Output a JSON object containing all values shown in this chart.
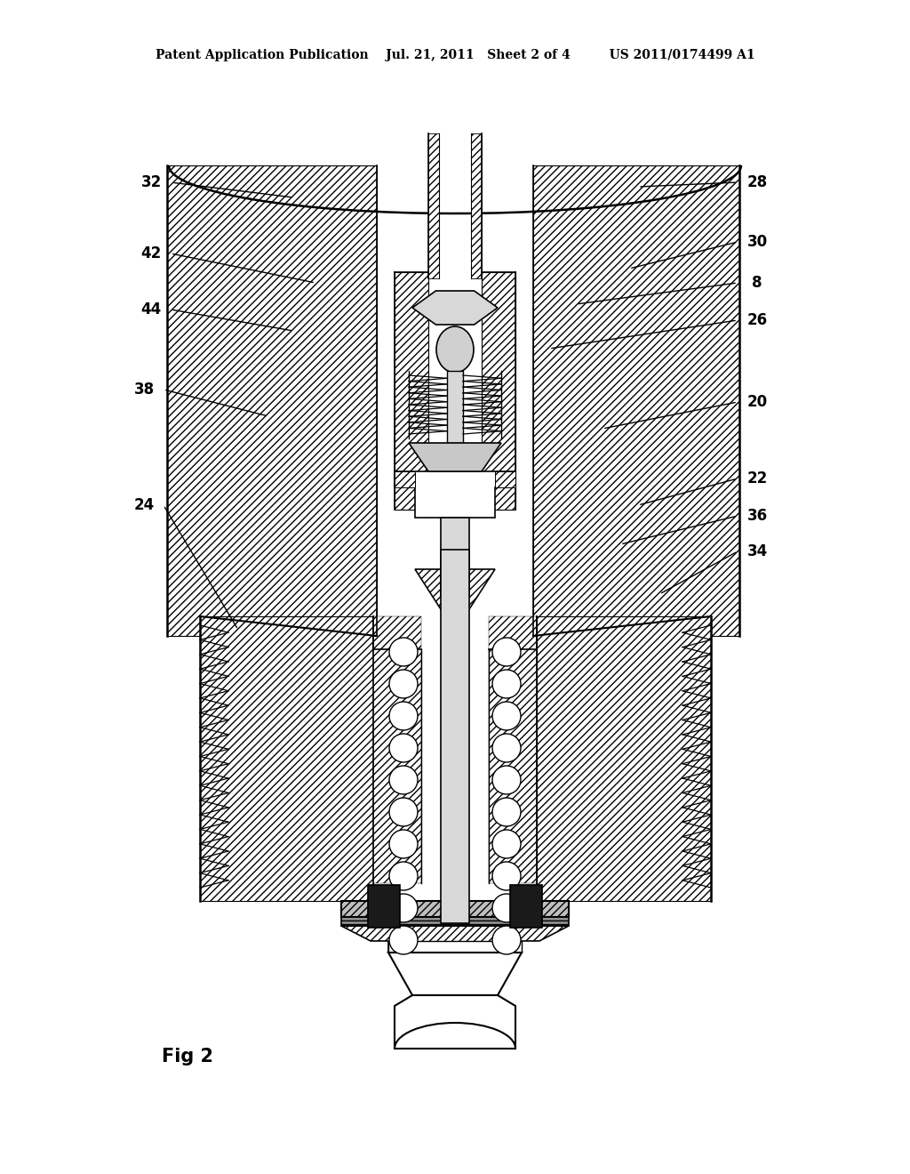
{
  "bg_color": "#ffffff",
  "line_color": "#000000",
  "header_text": "Patent Application Publication    Jul. 21, 2011   Sheet 2 of 4         US 2011/0174499 A1",
  "fig_label": "Fig 2",
  "labels_left": [
    [
      "32",
      170,
      205,
      330,
      222
    ],
    [
      "42",
      170,
      285,
      355,
      318
    ],
    [
      "44",
      170,
      348,
      330,
      372
    ],
    [
      "38",
      162,
      438,
      302,
      468
    ],
    [
      "24",
      162,
      568,
      268,
      708
    ]
  ],
  "labels_right": [
    [
      "28",
      852,
      205,
      718,
      210
    ],
    [
      "30",
      852,
      272,
      708,
      302
    ],
    [
      "8",
      852,
      318,
      648,
      342
    ],
    [
      "26",
      852,
      360,
      618,
      392
    ],
    [
      "20",
      852,
      452,
      678,
      482
    ],
    [
      "22",
      852,
      538,
      718,
      568
    ],
    [
      "36",
      852,
      580,
      698,
      612
    ],
    [
      "34",
      852,
      620,
      742,
      668
    ]
  ]
}
